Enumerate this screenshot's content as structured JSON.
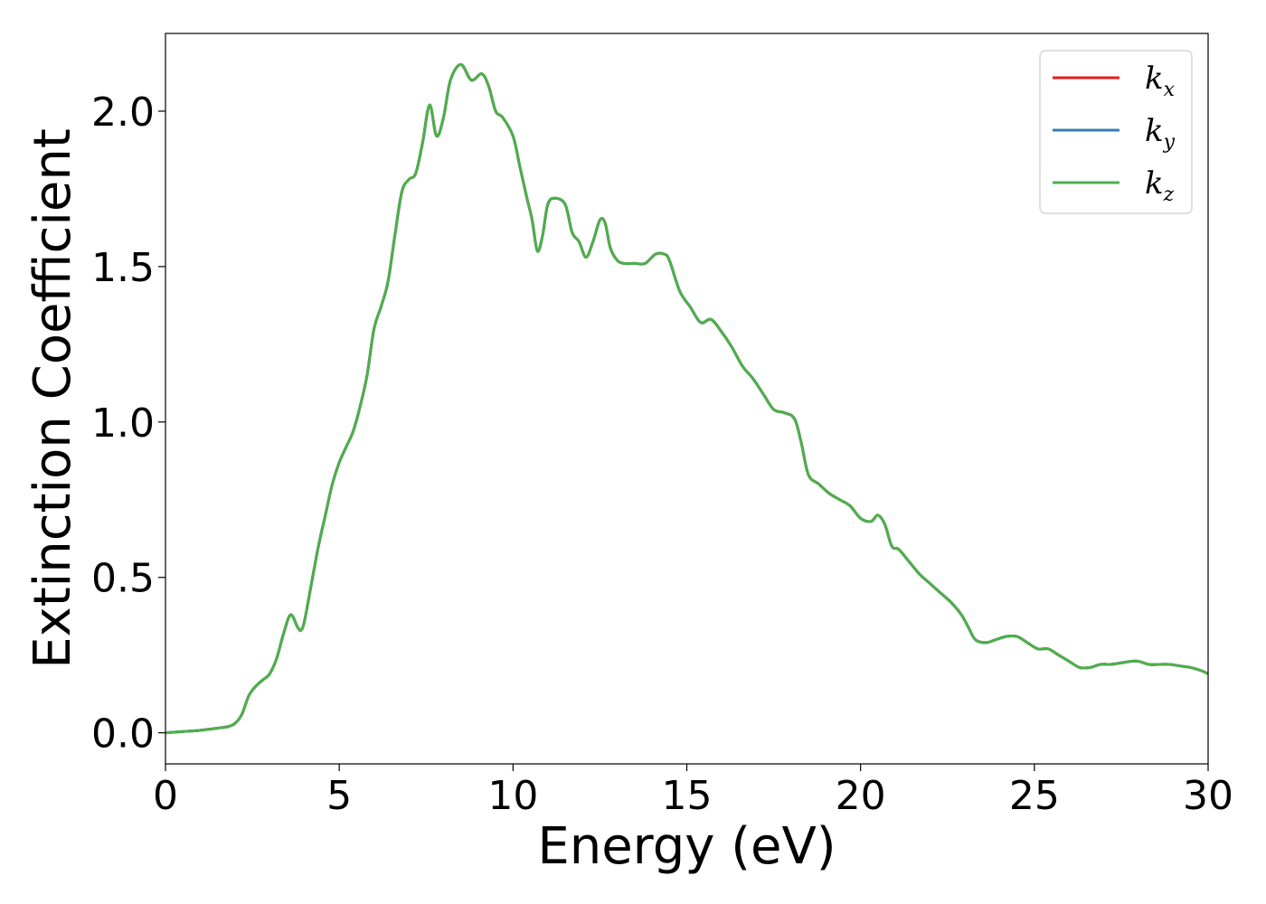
{
  "chart_data": {
    "type": "line",
    "xlabel": "Energy (eV)",
    "ylabel": "Extinction Coefficient",
    "xlim": [
      0,
      30
    ],
    "ylim": [
      -0.1,
      2.25
    ],
    "xticks": [
      "0",
      "5",
      "10",
      "15",
      "20",
      "25",
      "30"
    ],
    "yticks": [
      "0.0",
      "0.5",
      "1.0",
      "1.5",
      "2.0"
    ],
    "grid": false,
    "legend_position": "top-right",
    "x": [
      0,
      0.5,
      1.0,
      1.5,
      1.8,
      2.0,
      2.2,
      2.4,
      2.6,
      2.8,
      3.0,
      3.2,
      3.4,
      3.6,
      3.8,
      3.9,
      4.0,
      4.2,
      4.4,
      4.6,
      4.8,
      5.0,
      5.2,
      5.4,
      5.6,
      5.8,
      6.0,
      6.2,
      6.4,
      6.6,
      6.8,
      7.0,
      7.2,
      7.4,
      7.6,
      7.8,
      8.0,
      8.2,
      8.5,
      8.8,
      9.1,
      9.3,
      9.5,
      9.7,
      10.0,
      10.2,
      10.4,
      10.55,
      10.7,
      10.85,
      11.0,
      11.2,
      11.5,
      11.7,
      11.9,
      12.1,
      12.3,
      12.5,
      12.65,
      12.8,
      13.0,
      13.2,
      13.5,
      13.8,
      14.1,
      14.35,
      14.5,
      14.8,
      15.1,
      15.4,
      15.7,
      16.0,
      16.3,
      16.6,
      16.9,
      17.2,
      17.5,
      17.8,
      18.1,
      18.3,
      18.5,
      18.8,
      19.1,
      19.4,
      19.7,
      20.0,
      20.3,
      20.5,
      20.7,
      20.9,
      21.1,
      21.4,
      21.7,
      22.0,
      22.3,
      22.6,
      22.9,
      23.1,
      23.3,
      23.6,
      23.9,
      24.2,
      24.5,
      24.8,
      25.1,
      25.4,
      25.7,
      26.0,
      26.3,
      26.6,
      26.9,
      27.2,
      27.5,
      27.8,
      28.0,
      28.3,
      28.6,
      28.9,
      29.2,
      29.5,
      29.8,
      30.0
    ],
    "series": [
      {
        "name": "k_x",
        "color": "#e41a1c",
        "values": [
          0.0,
          0.004,
          0.008,
          0.015,
          0.02,
          0.03,
          0.06,
          0.12,
          0.15,
          0.17,
          0.19,
          0.24,
          0.32,
          0.38,
          0.34,
          0.33,
          0.36,
          0.48,
          0.6,
          0.7,
          0.8,
          0.87,
          0.92,
          0.97,
          1.05,
          1.15,
          1.3,
          1.37,
          1.45,
          1.6,
          1.74,
          1.78,
          1.8,
          1.9,
          2.02,
          1.92,
          1.98,
          2.1,
          2.15,
          2.1,
          2.12,
          2.08,
          2.0,
          1.98,
          1.92,
          1.82,
          1.72,
          1.65,
          1.55,
          1.6,
          1.7,
          1.72,
          1.7,
          1.61,
          1.58,
          1.53,
          1.58,
          1.65,
          1.64,
          1.56,
          1.52,
          1.51,
          1.51,
          1.51,
          1.54,
          1.54,
          1.52,
          1.42,
          1.37,
          1.32,
          1.33,
          1.29,
          1.24,
          1.18,
          1.14,
          1.09,
          1.04,
          1.03,
          1.01,
          0.93,
          0.83,
          0.8,
          0.77,
          0.75,
          0.73,
          0.69,
          0.68,
          0.7,
          0.67,
          0.6,
          0.59,
          0.55,
          0.51,
          0.48,
          0.45,
          0.42,
          0.38,
          0.34,
          0.3,
          0.29,
          0.3,
          0.31,
          0.31,
          0.29,
          0.27,
          0.27,
          0.25,
          0.23,
          0.21,
          0.21,
          0.22,
          0.22,
          0.225,
          0.23,
          0.23,
          0.22,
          0.22,
          0.22,
          0.215,
          0.21,
          0.2,
          0.19
        ]
      },
      {
        "name": "k_y",
        "color": "#377eb8",
        "values": [
          0.0,
          0.004,
          0.008,
          0.015,
          0.02,
          0.03,
          0.06,
          0.12,
          0.15,
          0.17,
          0.19,
          0.24,
          0.32,
          0.38,
          0.34,
          0.33,
          0.36,
          0.48,
          0.6,
          0.7,
          0.8,
          0.87,
          0.92,
          0.97,
          1.05,
          1.15,
          1.3,
          1.37,
          1.45,
          1.6,
          1.74,
          1.78,
          1.8,
          1.9,
          2.02,
          1.92,
          1.98,
          2.1,
          2.15,
          2.1,
          2.12,
          2.08,
          2.0,
          1.98,
          1.92,
          1.82,
          1.72,
          1.65,
          1.55,
          1.6,
          1.7,
          1.72,
          1.7,
          1.61,
          1.58,
          1.53,
          1.58,
          1.65,
          1.64,
          1.56,
          1.52,
          1.51,
          1.51,
          1.51,
          1.54,
          1.54,
          1.52,
          1.42,
          1.37,
          1.32,
          1.33,
          1.29,
          1.24,
          1.18,
          1.14,
          1.09,
          1.04,
          1.03,
          1.01,
          0.93,
          0.83,
          0.8,
          0.77,
          0.75,
          0.73,
          0.69,
          0.68,
          0.7,
          0.67,
          0.6,
          0.59,
          0.55,
          0.51,
          0.48,
          0.45,
          0.42,
          0.38,
          0.34,
          0.3,
          0.29,
          0.3,
          0.31,
          0.31,
          0.29,
          0.27,
          0.27,
          0.25,
          0.23,
          0.21,
          0.21,
          0.22,
          0.22,
          0.225,
          0.23,
          0.23,
          0.22,
          0.22,
          0.22,
          0.215,
          0.21,
          0.2,
          0.19
        ]
      },
      {
        "name": "k_z",
        "color": "#4daf4a",
        "values": [
          0.0,
          0.004,
          0.008,
          0.015,
          0.02,
          0.03,
          0.06,
          0.12,
          0.15,
          0.17,
          0.19,
          0.24,
          0.32,
          0.38,
          0.34,
          0.33,
          0.36,
          0.48,
          0.6,
          0.7,
          0.8,
          0.87,
          0.92,
          0.97,
          1.05,
          1.15,
          1.3,
          1.37,
          1.45,
          1.6,
          1.74,
          1.78,
          1.8,
          1.9,
          2.02,
          1.92,
          1.98,
          2.1,
          2.15,
          2.1,
          2.12,
          2.08,
          2.0,
          1.98,
          1.92,
          1.82,
          1.72,
          1.65,
          1.55,
          1.6,
          1.7,
          1.72,
          1.7,
          1.61,
          1.58,
          1.53,
          1.58,
          1.65,
          1.64,
          1.56,
          1.52,
          1.51,
          1.51,
          1.51,
          1.54,
          1.54,
          1.52,
          1.42,
          1.37,
          1.32,
          1.33,
          1.29,
          1.24,
          1.18,
          1.14,
          1.09,
          1.04,
          1.03,
          1.01,
          0.93,
          0.83,
          0.8,
          0.77,
          0.75,
          0.73,
          0.69,
          0.68,
          0.7,
          0.67,
          0.6,
          0.59,
          0.55,
          0.51,
          0.48,
          0.45,
          0.42,
          0.38,
          0.34,
          0.3,
          0.29,
          0.3,
          0.31,
          0.31,
          0.29,
          0.27,
          0.27,
          0.25,
          0.23,
          0.21,
          0.21,
          0.22,
          0.22,
          0.225,
          0.23,
          0.23,
          0.22,
          0.22,
          0.22,
          0.215,
          0.21,
          0.2,
          0.19
        ]
      }
    ],
    "legend": [
      {
        "base": "k",
        "sub": "x",
        "color": "#e41a1c"
      },
      {
        "base": "k",
        "sub": "y",
        "color": "#377eb8"
      },
      {
        "base": "k",
        "sub": "z",
        "color": "#4daf4a"
      }
    ]
  }
}
